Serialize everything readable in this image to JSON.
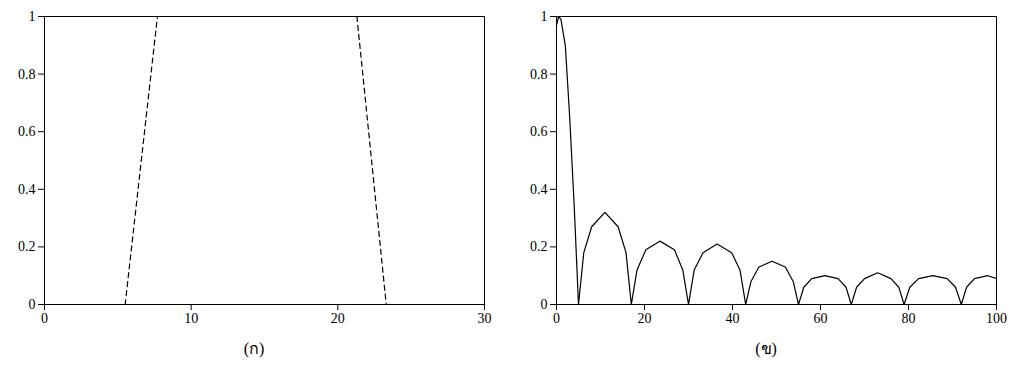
{
  "chart_data": [
    {
      "type": "line",
      "title": "(ก)",
      "xlim": [
        0,
        30
      ],
      "xticks": [
        0,
        10,
        20,
        30
      ],
      "ylim": [
        0,
        1
      ],
      "yticks": [
        0,
        0.2,
        0.4,
        0.6,
        0.8,
        1
      ],
      "series": [
        {
          "color": "#000000",
          "line_style": "dashed",
          "x": [
            5.5,
            7.7
          ],
          "values": [
            0,
            1
          ]
        },
        {
          "color": "#000000",
          "line_style": "dashed",
          "x": [
            21.3,
            23.3
          ],
          "values": [
            1,
            0
          ]
        }
      ]
    },
    {
      "type": "line",
      "title": "(ข)",
      "xlim": [
        0,
        100
      ],
      "xticks": [
        0,
        20,
        40,
        60,
        80,
        100
      ],
      "ylim": [
        0,
        1
      ],
      "yticks": [
        0,
        0.2,
        0.4,
        0.6,
        0.8,
        1
      ],
      "series": [
        {
          "color": "#000000",
          "line_style": "solid",
          "x": [
            0,
            0.5,
            1,
            2,
            3,
            4,
            5,
            6.2,
            8,
            11,
            14,
            15.8,
            17,
            18.3,
            20.3,
            23.5,
            26.8,
            28.7,
            30,
            31.3,
            33.3,
            36.5,
            39.8,
            41.7,
            43,
            44.2,
            46,
            49,
            52,
            53.8,
            55,
            56.2,
            58,
            61,
            64,
            65.8,
            67,
            68.2,
            70,
            73,
            76,
            77.8,
            79,
            80.3,
            82.3,
            85.5,
            88.8,
            90.7,
            92,
            93.2,
            95,
            98,
            100
          ],
          "values": [
            0.97,
            1,
            0.99,
            0.9,
            0.65,
            0.35,
            0,
            0.18,
            0.27,
            0.32,
            0.27,
            0.18,
            0,
            0.12,
            0.19,
            0.22,
            0.19,
            0.12,
            0,
            0.12,
            0.18,
            0.21,
            0.18,
            0.12,
            0,
            0.08,
            0.13,
            0.15,
            0.13,
            0.08,
            0,
            0.06,
            0.09,
            0.1,
            0.09,
            0.06,
            0,
            0.06,
            0.09,
            0.11,
            0.09,
            0.06,
            0,
            0.06,
            0.09,
            0.1,
            0.09,
            0.06,
            0,
            0.06,
            0.09,
            0.1,
            0.09
          ]
        }
      ]
    }
  ]
}
